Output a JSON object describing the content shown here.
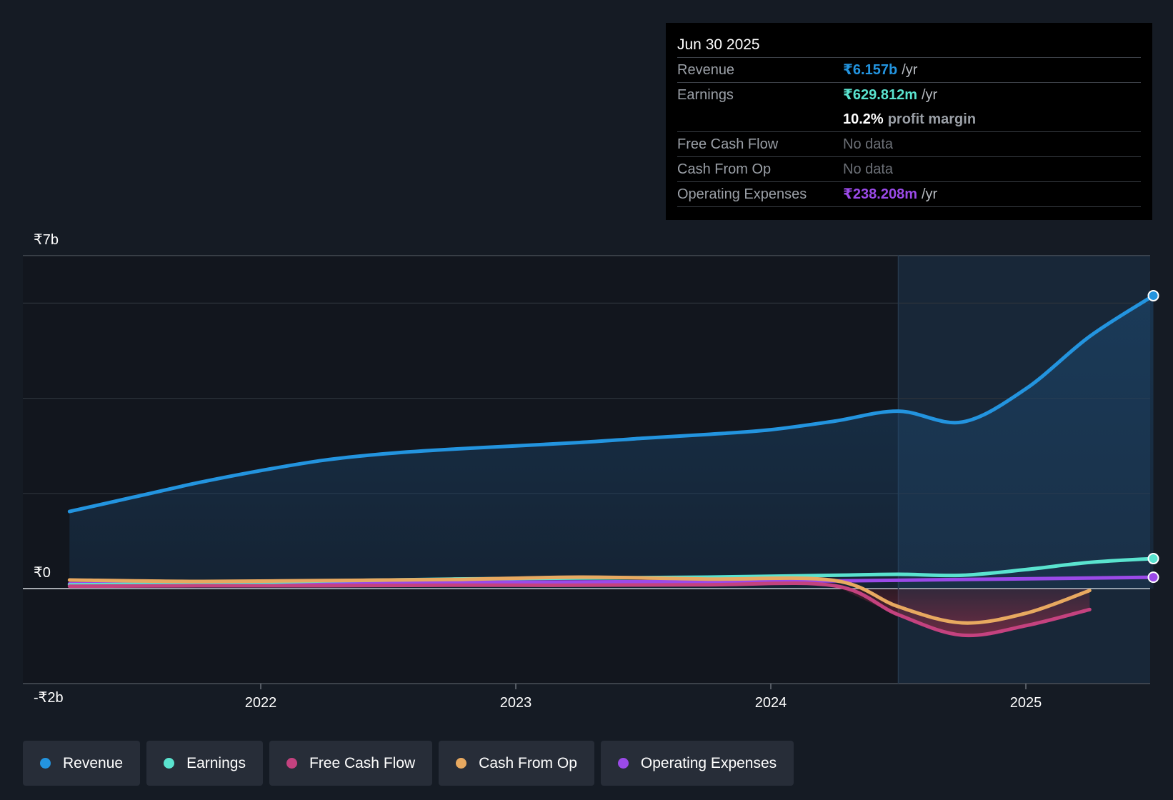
{
  "chart_data": {
    "type": "line",
    "x_ticks": [
      2022,
      2023,
      2024,
      2025
    ],
    "y_ticks": [
      "₹7b",
      "₹0",
      "-₹2b"
    ],
    "ylim": [
      -2000000000,
      7000000000
    ],
    "xlim": [
      2021.25,
      2025.5
    ],
    "forecast_start": 2024.5,
    "series": [
      {
        "name": "Revenue",
        "color": "#2394df",
        "points": [
          [
            2021.25,
            1620000000.0
          ],
          [
            2021.5,
            1920000000.0
          ],
          [
            2021.75,
            2220000000.0
          ],
          [
            2022.0,
            2480000000.0
          ],
          [
            2022.25,
            2700000000.0
          ],
          [
            2022.5,
            2840000000.0
          ],
          [
            2022.75,
            2930000000.0
          ],
          [
            2023.0,
            3000000000.0
          ],
          [
            2023.25,
            3070000000.0
          ],
          [
            2023.5,
            3160000000.0
          ],
          [
            2023.75,
            3240000000.0
          ],
          [
            2024.0,
            3340000000.0
          ],
          [
            2024.25,
            3520000000.0
          ],
          [
            2024.5,
            3730000000.0
          ],
          [
            2024.75,
            3500000000.0
          ],
          [
            2025.0,
            4200000000.0
          ],
          [
            2025.25,
            5300000000.0
          ],
          [
            2025.5,
            6157000000.0
          ]
        ]
      },
      {
        "name": "Earnings",
        "color": "#5ae3cf",
        "points": [
          [
            2021.25,
            80000000.0
          ],
          [
            2021.75,
            100000000.0
          ],
          [
            2022.25,
            160000000.0
          ],
          [
            2022.75,
            200000000.0
          ],
          [
            2023.25,
            220000000.0
          ],
          [
            2023.75,
            240000000.0
          ],
          [
            2024.25,
            280000000.0
          ],
          [
            2024.5,
            300000000.0
          ],
          [
            2024.75,
            280000000.0
          ],
          [
            2025.0,
            400000000.0
          ],
          [
            2025.25,
            550000000.0
          ],
          [
            2025.5,
            630000000.0
          ]
        ]
      },
      {
        "name": "Free Cash Flow",
        "color": "#c4427f",
        "points": [
          [
            2021.25,
            50000000.0
          ],
          [
            2021.75,
            60000000.0
          ],
          [
            2022.25,
            60000000.0
          ],
          [
            2022.75,
            70000000.0
          ],
          [
            2023.25,
            70000000.0
          ],
          [
            2023.75,
            80000000.0
          ],
          [
            2024.25,
            60000000.0
          ],
          [
            2024.5,
            -550000000.0
          ],
          [
            2024.75,
            -980000000.0
          ],
          [
            2025.0,
            -780000000.0
          ],
          [
            2025.25,
            -440000000.0
          ]
        ]
      },
      {
        "name": "Cash From Op",
        "color": "#e8a960",
        "points": [
          [
            2021.25,
            180000000.0
          ],
          [
            2021.75,
            150000000.0
          ],
          [
            2022.25,
            170000000.0
          ],
          [
            2022.75,
            190000000.0
          ],
          [
            2023.25,
            240000000.0
          ],
          [
            2023.75,
            200000000.0
          ],
          [
            2024.25,
            170000000.0
          ],
          [
            2024.5,
            -380000000.0
          ],
          [
            2024.75,
            -720000000.0
          ],
          [
            2025.0,
            -520000000.0
          ],
          [
            2025.25,
            -40000000.0
          ]
        ]
      },
      {
        "name": "Operating Expenses",
        "color": "#9b4ae8",
        "points": [
          [
            2021.25,
            100000000.0
          ],
          [
            2021.75,
            100000000.0
          ],
          [
            2022.25,
            120000000.0
          ],
          [
            2022.75,
            130000000.0
          ],
          [
            2023.25,
            140000000.0
          ],
          [
            2023.75,
            150000000.0
          ],
          [
            2024.25,
            160000000.0
          ],
          [
            2024.75,
            190000000.0
          ],
          [
            2025.25,
            220000000.0
          ],
          [
            2025.5,
            238000000.0
          ]
        ]
      }
    ]
  },
  "tooltip": {
    "date": "Jun 30 2025",
    "revenue_label": "Revenue",
    "revenue_value": "₹6.157b",
    "revenue_unit": "/yr",
    "earnings_label": "Earnings",
    "earnings_value": "₹629.812m",
    "earnings_unit": "/yr",
    "margin_value": "10.2%",
    "margin_text": "profit margin",
    "fcf_label": "Free Cash Flow",
    "fcf_value": "No data",
    "cfo_label": "Cash From Op",
    "cfo_value": "No data",
    "opex_label": "Operating Expenses",
    "opex_value": "₹238.208m",
    "opex_unit": "/yr"
  },
  "legend": [
    {
      "label": "Revenue",
      "color": "#2394df"
    },
    {
      "label": "Earnings",
      "color": "#5ae3cf"
    },
    {
      "label": "Free Cash Flow",
      "color": "#c4427f"
    },
    {
      "label": "Cash From Op",
      "color": "#e8a960"
    },
    {
      "label": "Operating Expenses",
      "color": "#9b4ae8"
    }
  ],
  "colors": {
    "revenue": "#2394df",
    "earnings": "#5ae3cf",
    "fcf": "#c4427f",
    "cfo": "#e8a960",
    "opex": "#9b4ae8"
  }
}
